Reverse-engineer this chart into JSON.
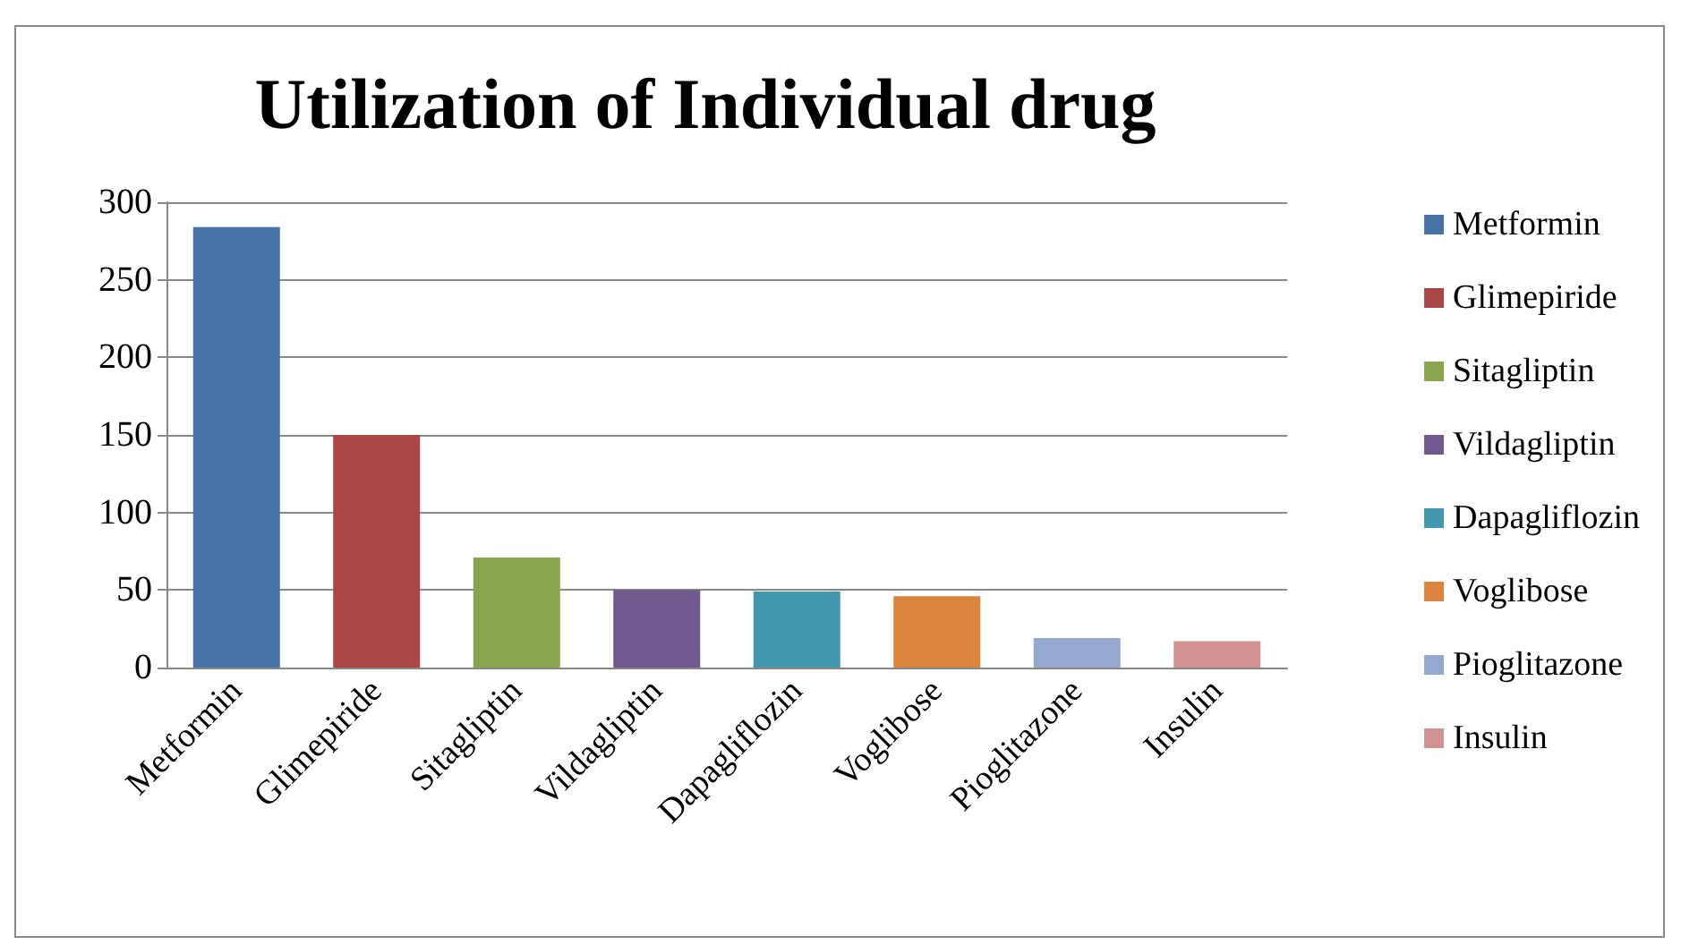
{
  "chart_data": {
    "type": "bar",
    "title": "Utilization of Individual drug",
    "categories": [
      "Metformin",
      "Glimepiride",
      "Sitagliptin",
      "Vildagliptin",
      "Dapagliflozin",
      "Voglibose",
      "Pioglitazone",
      "Insulin"
    ],
    "stacked": true,
    "series": [
      {
        "name": "Metformin",
        "color": "#4572a7",
        "values": [
          284,
          null,
          null,
          null,
          null,
          null,
          null,
          null
        ]
      },
      {
        "name": "Glimepiride",
        "color": "#aa4643",
        "values": [
          null,
          150,
          null,
          null,
          null,
          null,
          null,
          null
        ]
      },
      {
        "name": "Sitagliptin",
        "color": "#89a54e",
        "values": [
          null,
          null,
          71,
          null,
          null,
          null,
          null,
          null
        ]
      },
      {
        "name": "Vildagliptin",
        "color": "#71588f",
        "values": [
          null,
          null,
          null,
          50,
          null,
          null,
          null,
          null
        ]
      },
      {
        "name": "Dapagliflozin",
        "color": "#4198af",
        "values": [
          null,
          null,
          null,
          null,
          49,
          null,
          null,
          null
        ]
      },
      {
        "name": "Voglibose",
        "color": "#db843d",
        "values": [
          null,
          null,
          null,
          null,
          null,
          46,
          null,
          null
        ]
      },
      {
        "name": "Pioglitazone",
        "color": "#93a9cf",
        "values": [
          null,
          null,
          null,
          null,
          null,
          null,
          19,
          null
        ]
      },
      {
        "name": "Insulin",
        "color": "#d19392",
        "values": [
          null,
          null,
          null,
          null,
          null,
          null,
          null,
          17
        ]
      }
    ],
    "ylim": [
      0,
      300
    ],
    "yticks": [
      0,
      50,
      100,
      150,
      200,
      250,
      300
    ],
    "grid": "y",
    "legend": "right"
  }
}
